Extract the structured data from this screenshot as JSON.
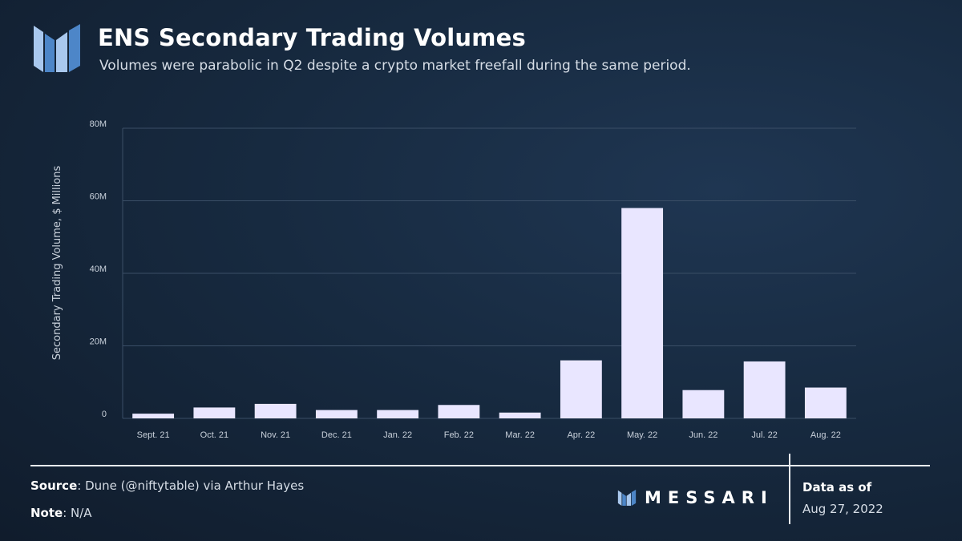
{
  "header": {
    "title": "ENS Secondary Trading Volumes",
    "subtitle": "Volumes were parabolic in Q2 despite a crypto market freefall during the same period."
  },
  "colors": {
    "bar": "#e9e6ff",
    "grid": "#3a4e66",
    "logo_light": "#a9c8ee",
    "logo_dark": "#4d86c8"
  },
  "icons": {
    "header_logo": "messari-logo-icon",
    "brand_logo": "messari-mark-icon"
  },
  "chart_data": {
    "type": "bar",
    "title": "ENS Secondary Trading Volumes",
    "ylabel": "Secondary Trading Volume, $ Millions",
    "xlabel": "",
    "categories": [
      "Sept. 21",
      "Oct. 21",
      "Nov. 21",
      "Dec. 21",
      "Jan. 22",
      "Feb. 22",
      "Mar. 22",
      "Apr. 22",
      "May. 22",
      "Jun. 22",
      "Jul. 22",
      "Aug. 22"
    ],
    "values": [
      1.3,
      3.0,
      4.0,
      2.3,
      2.3,
      3.7,
      1.6,
      16.0,
      58.0,
      7.8,
      15.7,
      8.5
    ],
    "ylim": [
      0,
      80
    ],
    "yticks": [
      0,
      20,
      40,
      60,
      80
    ],
    "ytick_labels": [
      "0",
      "20M",
      "40M",
      "60M",
      "80M"
    ],
    "grid": true,
    "legend": "none"
  },
  "footer": {
    "source_label": "Source",
    "source_text": ": Dune (@niftytable) via Arthur Hayes",
    "note_label": "Note",
    "note_text": ": N/A",
    "brand": "MESSARI",
    "data_as_of_label": "Data as of",
    "data_as_of_date": "Aug 27, 2022"
  }
}
